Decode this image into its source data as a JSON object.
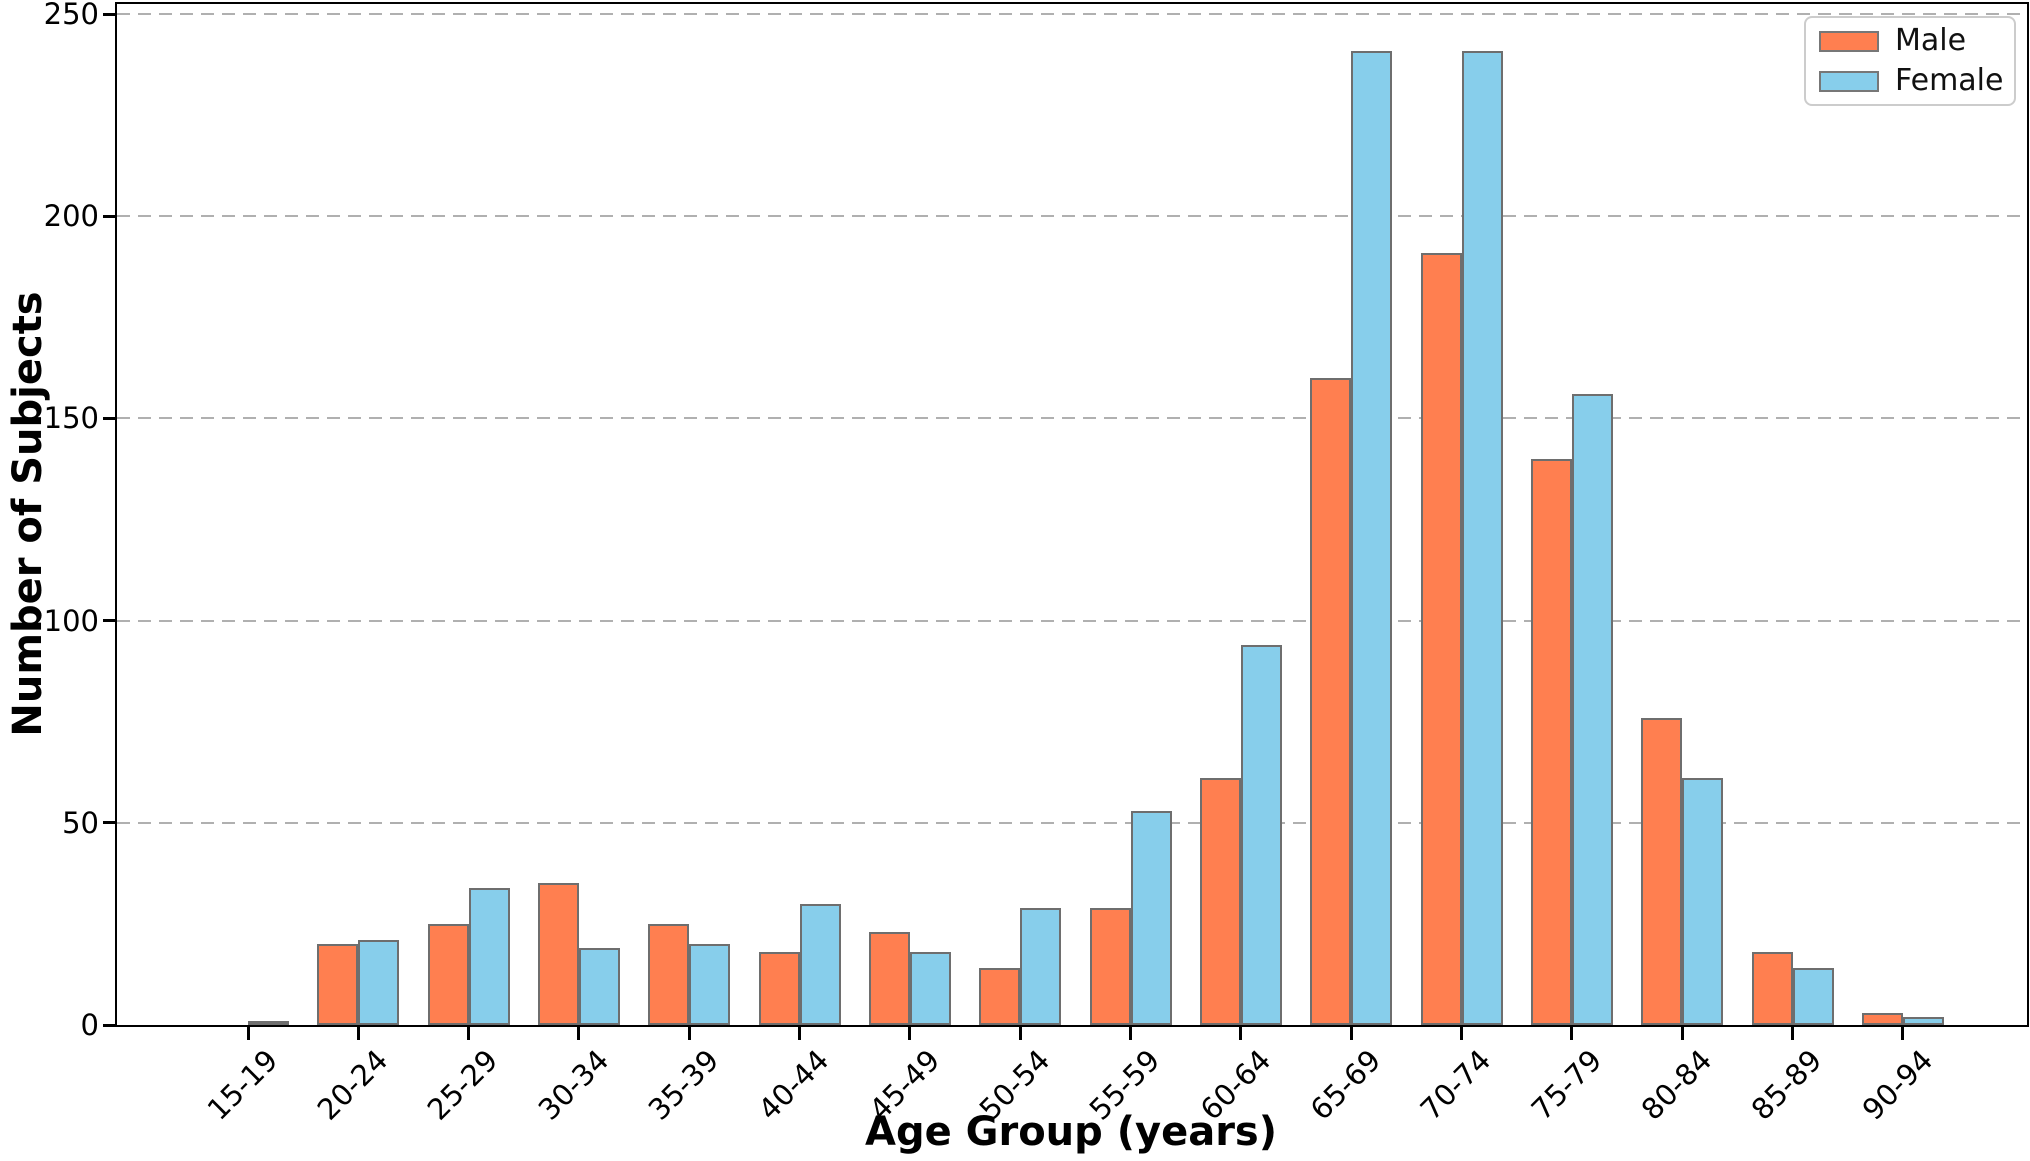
{
  "figure": {
    "xlabel": "Age Group (years)",
    "ylabel": "Number of Subjects"
  },
  "chart_data": {
    "type": "bar",
    "title": "",
    "xlabel": "Age Group (years)",
    "ylabel": "Number of Subjects",
    "categories": [
      "15-19",
      "20-24",
      "25-29",
      "30-34",
      "35-39",
      "40-44",
      "45-49",
      "50-54",
      "55-59",
      "60-64",
      "65-69",
      "70-74",
      "75-79",
      "80-84",
      "85-89",
      "90-94"
    ],
    "series": [
      {
        "name": "Male",
        "color": "#FF7F50",
        "edge_color": "#6e6e6e",
        "values": [
          0,
          20,
          25,
          35,
          25,
          18,
          23,
          14,
          29,
          61,
          160,
          191,
          140,
          76,
          18,
          3
        ]
      },
      {
        "name": "Female",
        "color": "#87CEEB",
        "edge_color": "#6e6e6e",
        "values": [
          1,
          21,
          34,
          19,
          20,
          30,
          18,
          29,
          53,
          94,
          241,
          241,
          156,
          61,
          14,
          2
        ]
      }
    ],
    "yticks": [
      0,
      50,
      100,
      150,
      200,
      250
    ],
    "ylim": [
      0,
      250
    ],
    "grid": "horizontal-dashed",
    "grid_color": "#b0b0b0",
    "legend_position": "upper-right",
    "x_tick_rotation": 45
  },
  "legend": {
    "items": [
      {
        "label": "Male",
        "color": "#FF7F50"
      },
      {
        "label": "Female",
        "color": "#87CEEB"
      }
    ]
  }
}
